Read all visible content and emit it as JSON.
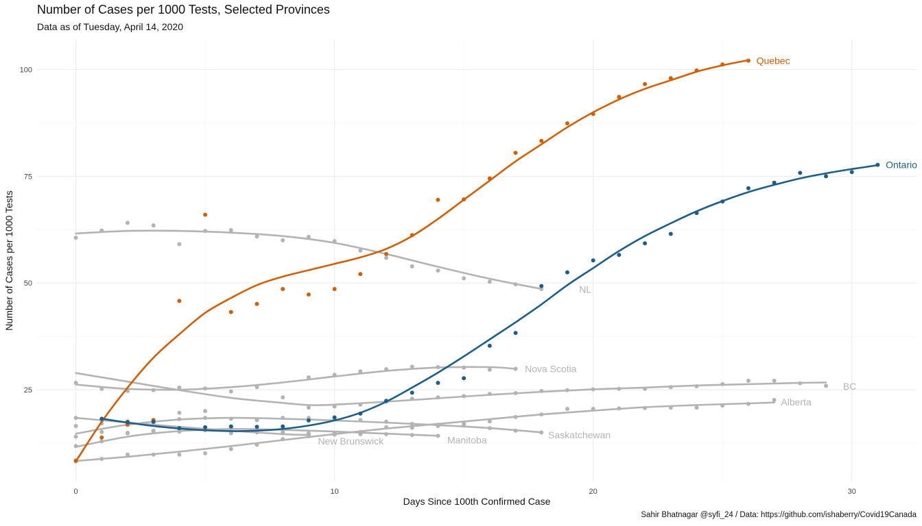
{
  "chart_data": {
    "type": "scatter",
    "title": "Number of Cases per 1000 Tests, Selected Provinces",
    "subtitle": "Data as of Tuesday, April 14, 2020",
    "caption": "Sahir Bhatnagar @syfi_24 / Data: https://github.com/ishaberry/Covid19Canada",
    "xlabel": "Days Since 100th Confirmed Case",
    "ylabel": "Number of Cases per 1000 Tests",
    "xlim": [
      -1.5,
      32.5
    ],
    "ylim": [
      3.5,
      107
    ],
    "xticks": [
      0,
      10,
      20,
      30
    ],
    "yticks": [
      25,
      50,
      75,
      100
    ],
    "grid": true,
    "legend": "none",
    "colors": {
      "highlight_quebec": "#D55E00",
      "highlight_ontario": "#1B5E8C",
      "other": "#B3B3B3"
    },
    "series": [
      {
        "name": "Quebec",
        "highlight": true,
        "x": [
          0,
          1,
          2,
          3,
          4,
          5,
          6,
          7,
          8,
          9,
          10,
          11,
          12,
          13,
          14,
          15,
          16,
          17,
          18,
          19,
          20,
          21,
          22,
          23,
          24,
          25,
          26
        ],
        "y": [
          8.4,
          13.8,
          16.8,
          17.9,
          45.8,
          66.0,
          43.2,
          45.1,
          48.6,
          47.3,
          48.6,
          52.1,
          56.8,
          61.2,
          69.5,
          69.6,
          74.5,
          80.5,
          83.3,
          87.4,
          89.6,
          93.6,
          96.6,
          98.0,
          99.8,
          101.2,
          102.1
        ],
        "fit": [
          [
            0,
            8.2
          ],
          [
            1,
            17.5
          ],
          [
            2,
            25.5
          ],
          [
            3,
            32.5
          ],
          [
            4,
            38
          ],
          [
            5,
            43
          ],
          [
            6,
            46.5
          ],
          [
            7,
            49.5
          ],
          [
            8,
            51.5
          ],
          [
            9,
            53
          ],
          [
            10,
            54.5
          ],
          [
            11,
            56
          ],
          [
            12,
            58
          ],
          [
            13,
            61
          ],
          [
            14,
            65
          ],
          [
            15,
            69.5
          ],
          [
            16,
            74
          ],
          [
            17,
            78.5
          ],
          [
            18,
            82.5
          ],
          [
            19,
            86.5
          ],
          [
            20,
            90
          ],
          [
            21,
            93
          ],
          [
            22,
            95.5
          ],
          [
            23,
            97.5
          ],
          [
            24,
            99.5
          ],
          [
            25,
            101
          ],
          [
            26,
            102.2
          ]
        ]
      },
      {
        "name": "Ontario",
        "highlight": true,
        "x": [
          1,
          2,
          3,
          4,
          5,
          6,
          7,
          8,
          9,
          10,
          11,
          12,
          13,
          14,
          15,
          16,
          17,
          18,
          19,
          20,
          21,
          22,
          23,
          24,
          25,
          26,
          27,
          28,
          29,
          30,
          31
        ],
        "y": [
          18.2,
          17.4,
          17.5,
          16.0,
          16.2,
          16.4,
          16.3,
          16.4,
          17.8,
          18.5,
          19.4,
          22.4,
          24.3,
          26.6,
          27.7,
          35.3,
          38.3,
          49.3,
          52.5,
          55.3,
          56.6,
          59.3,
          61.5,
          66.4,
          69.1,
          72.2,
          73.5,
          75.8,
          75.0,
          76.0,
          77.7
        ],
        "fit": [
          [
            1,
            18.2
          ],
          [
            2,
            17.3
          ],
          [
            3,
            16.5
          ],
          [
            4,
            15.9
          ],
          [
            5,
            15.5
          ],
          [
            6,
            15.3
          ],
          [
            7,
            15.4
          ],
          [
            8,
            15.8
          ],
          [
            9,
            16.6
          ],
          [
            10,
            17.8
          ],
          [
            11,
            19.6
          ],
          [
            12,
            22.2
          ],
          [
            13,
            25.5
          ],
          [
            14,
            29
          ],
          [
            15,
            32.8
          ],
          [
            16,
            36.8
          ],
          [
            17,
            40.8
          ],
          [
            18,
            45
          ],
          [
            19,
            49.5
          ],
          [
            20,
            53.5
          ],
          [
            21,
            57.5
          ],
          [
            22,
            61
          ],
          [
            23,
            64
          ],
          [
            24,
            66.8
          ],
          [
            25,
            69.2
          ],
          [
            26,
            71.3
          ],
          [
            27,
            73
          ],
          [
            28,
            74.5
          ],
          [
            29,
            75.7
          ],
          [
            30,
            76.7
          ],
          [
            31,
            77.6
          ]
        ]
      },
      {
        "name": "NL",
        "highlight": false,
        "x": [
          0,
          1,
          2,
          3,
          4,
          5,
          6,
          7,
          8,
          9,
          10,
          11,
          12,
          13,
          14,
          15,
          16,
          17,
          18
        ],
        "y": [
          60.6,
          62.3,
          64.1,
          63.5,
          59.1,
          62.2,
          62.4,
          60.9,
          60.0,
          60.8,
          59.8,
          57.6,
          55.9,
          53.9,
          52.9,
          51.1,
          50.3,
          49.7,
          48.6
        ],
        "fit": [
          [
            0,
            61.6
          ],
          [
            2,
            62.2
          ],
          [
            4,
            62.2
          ],
          [
            6,
            61.8
          ],
          [
            8,
            61
          ],
          [
            10,
            59.4
          ],
          [
            12,
            56.8
          ],
          [
            14,
            53.8
          ],
          [
            16,
            51
          ],
          [
            18,
            48.6
          ]
        ],
        "label_at": [
          19.3,
          48.5
        ]
      },
      {
        "name": "Nova Scotia",
        "highlight": false,
        "x": [
          0,
          1,
          2,
          3,
          4,
          5,
          6,
          7,
          8,
          9,
          10,
          11,
          12,
          13,
          14,
          15,
          16,
          17
        ],
        "y": [
          26.6,
          25.2,
          24.7,
          24.9,
          25.5,
          25.3,
          24.6,
          25.6,
          23.2,
          27.9,
          28.5,
          29.3,
          29.8,
          30.4,
          30.3,
          30.2,
          29.7,
          29.9
        ],
        "fit": [
          [
            0,
            26.2
          ],
          [
            2,
            25.2
          ],
          [
            4,
            25
          ],
          [
            6,
            25.6
          ],
          [
            8,
            26.7
          ],
          [
            10,
            28.1
          ],
          [
            12,
            29.4
          ],
          [
            14,
            30.2
          ],
          [
            16,
            30.3
          ],
          [
            17,
            29.9
          ]
        ],
        "label_at": [
          17.2,
          29.9
        ]
      },
      {
        "name": "BC",
        "highlight": false,
        "x": [
          0,
          1,
          2,
          3,
          4,
          5,
          6,
          7,
          8,
          9,
          10,
          11,
          12,
          13,
          14,
          15,
          16,
          17,
          18,
          19,
          20,
          21,
          22,
          23,
          24,
          25,
          26,
          27,
          28,
          29
        ],
        "y": [
          16.5,
          17.1,
          17.0,
          17.3,
          19.6,
          20.0,
          16.1,
          17.9,
          13.4,
          20.8,
          21.1,
          21.5,
          22.2,
          22.9,
          23.2,
          23.5,
          24.0,
          24.2,
          24.7,
          24.9,
          25.1,
          25.2,
          25.2,
          25.6,
          25.8,
          26.3,
          27.1,
          27.1,
          26.5,
          25.9
        ],
        "fit": [
          [
            0,
            28.9
          ],
          [
            2,
            26.9
          ],
          [
            4,
            24.9
          ],
          [
            6,
            23.1
          ],
          [
            8,
            21.9
          ],
          [
            9,
            21.4
          ],
          [
            10,
            21.5
          ],
          [
            12,
            22.2
          ],
          [
            14,
            23
          ],
          [
            16,
            23.8
          ],
          [
            18,
            24.5
          ],
          [
            20,
            25.1
          ],
          [
            22,
            25.5
          ],
          [
            24,
            26
          ],
          [
            26,
            26.3
          ],
          [
            28,
            26.6
          ],
          [
            29,
            26.7
          ]
        ],
        "label_at": [
          29.5,
          25.8
        ]
      },
      {
        "name": "Alberta",
        "highlight": false,
        "x": [
          0,
          1,
          2,
          3,
          4,
          5,
          6,
          7,
          8,
          9,
          10,
          11,
          12,
          13,
          14,
          15,
          16,
          17,
          18,
          19,
          20,
          21,
          22,
          23,
          24,
          25,
          26,
          27
        ],
        "y": [
          8.2,
          8.8,
          9.8,
          9.8,
          9.8,
          10.1,
          11.1,
          12.1,
          13.4,
          14.4,
          14.9,
          15.1,
          16.2,
          16.1,
          16.5,
          17.1,
          17.6,
          18.6,
          19.2,
          20.5,
          20.5,
          20.6,
          20.7,
          20.8,
          20.8,
          21.3,
          21.7,
          22.6
        ],
        "fit": [
          [
            0,
            8.3
          ],
          [
            2,
            9.3
          ],
          [
            4,
            10.5
          ],
          [
            6,
            11.8
          ],
          [
            8,
            13.2
          ],
          [
            10,
            14.6
          ],
          [
            12,
            15.9
          ],
          [
            14,
            17
          ],
          [
            16,
            18.1
          ],
          [
            18,
            19.2
          ],
          [
            20,
            20.1
          ],
          [
            22,
            20.9
          ],
          [
            24,
            21.4
          ],
          [
            26,
            21.8
          ],
          [
            27,
            22
          ]
        ],
        "label_at": [
          27.1,
          22.1
        ]
      },
      {
        "name": "Saskatchewan",
        "highlight": false,
        "x": [
          0,
          1,
          2,
          3,
          4,
          5,
          6,
          7,
          8,
          9,
          10,
          11,
          12,
          13,
          14,
          15,
          16,
          17,
          18
        ],
        "y": [
          18.4,
          17.8,
          17.6,
          17.8,
          18.1,
          18.4,
          18.2,
          17.9,
          18.4,
          18.4,
          18.1,
          17.9,
          17.5,
          17.0,
          16.8,
          16.6,
          16.0,
          15.4,
          15.0
        ],
        "fit": [
          [
            0,
            14.7
          ],
          [
            2,
            16.8
          ],
          [
            4,
            18
          ],
          [
            6,
            18.4
          ],
          [
            8,
            18.2
          ],
          [
            10,
            17.8
          ],
          [
            12,
            17.3
          ],
          [
            14,
            16.7
          ],
          [
            16,
            16
          ],
          [
            18,
            15
          ]
        ],
        "label_at": [
          18.1,
          14.4
        ]
      },
      {
        "name": "New Brunswick",
        "highlight": false,
        "x": [
          0,
          1,
          2,
          3,
          4,
          5,
          6,
          7,
          8,
          9
        ],
        "y": [
          14.0,
          15.1,
          14.8,
          15.3,
          15.7,
          15.9,
          14.8,
          15.0,
          14.8,
          14.8
        ],
        "fit": [
          [
            0,
            18.4
          ],
          [
            2,
            17.3
          ],
          [
            4,
            16.3
          ],
          [
            6,
            15.4
          ],
          [
            8,
            14.6
          ],
          [
            9,
            14.4
          ]
        ],
        "label_at": [
          9.2,
          13.0
        ]
      },
      {
        "name": "Manitoba",
        "highlight": false,
        "x": [
          0,
          1,
          2,
          3,
          4,
          5,
          6,
          7,
          8,
          9,
          10,
          11,
          12,
          13,
          14
        ],
        "y": [
          11.8,
          12.9,
          14.9,
          15.4,
          15.2,
          15.5,
          15.2,
          15.4,
          15.1,
          14.1,
          14.5,
          14.6,
          14.6,
          14.4,
          14.2
        ],
        "fit": [
          [
            0,
            11.6
          ],
          [
            2,
            14
          ],
          [
            4,
            15.3
          ],
          [
            6,
            15.8
          ],
          [
            8,
            15.6
          ],
          [
            10,
            15.2
          ],
          [
            12,
            14.7
          ],
          [
            14,
            14.2
          ]
        ],
        "label_at": [
          14.2,
          13.2
        ]
      }
    ]
  }
}
